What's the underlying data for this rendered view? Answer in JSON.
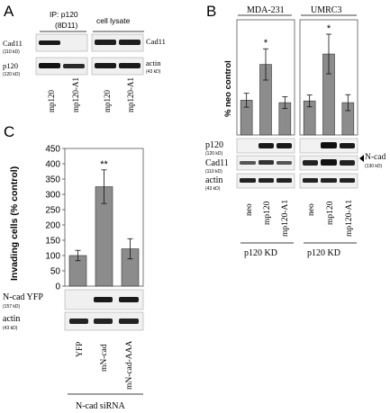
{
  "panel_a": {
    "label": "A",
    "ip_title": "IP: p120",
    "ip_antibody": "(8D11)",
    "lysate_title": "cell lysate",
    "row1_label": "Cad11",
    "row1_kd": "(110 kD)",
    "row2_label": "p120",
    "row2_kd": "(120 kD)",
    "right1_label": "Cad11",
    "right2_label": "actin",
    "right2_kd": "(43 kD)",
    "lanes": [
      "mp120",
      "mp120-A1",
      "mp120",
      "mp120-A1"
    ]
  },
  "panel_b": {
    "label": "B",
    "ylabel": "% neo control",
    "cell_lines": [
      "MDA-231",
      "UMRC3"
    ],
    "lanes": [
      "neo",
      "mp120",
      "mp120-A1",
      "neo",
      "mp120",
      "mp120-A1"
    ],
    "blot_p120": "p120",
    "blot_p120_kd": "(120 kD)",
    "blot_cad11": "Cad11",
    "blot_cad11_kd": "(110 kD)",
    "blot_actin": "actin",
    "blot_actin_kd": "(43 kD)",
    "ncad_label": "N-cad",
    "ncad_kd": "(130 kD)",
    "kd_labels": [
      "p120 KD",
      "p120 KD"
    ]
  },
  "panel_c": {
    "label": "C",
    "blot_ncad": "N-cad YFP",
    "blot_ncad_kd": "(157 kD)",
    "blot_actin": "actin",
    "blot_actin_kd": "(43 kD)",
    "sirna": "N-cad siRNA"
  },
  "chart_data": [
    {
      "type": "bar",
      "title": "MDA-231",
      "ylabel": "% neo control",
      "categories": [
        "neo",
        "mp120",
        "mp120-A1"
      ],
      "values": [
        100,
        203,
        93
      ],
      "errors": [
        20,
        45,
        17
      ],
      "annotations": [
        "",
        "*",
        ""
      ],
      "ylim": [
        0,
        300
      ]
    },
    {
      "type": "bar",
      "title": "UMRC3",
      "ylabel": "% neo control",
      "categories": [
        "neo",
        "mp120",
        "mp120-A1"
      ],
      "values": [
        98,
        233,
        93
      ],
      "errors": [
        17,
        57,
        23
      ],
      "annotations": [
        "",
        "*",
        ""
      ],
      "ylim": [
        0,
        300
      ]
    },
    {
      "type": "bar",
      "title": "",
      "ylabel": "Invading cells (% control)",
      "categories": [
        "YFP",
        "mN-cad",
        "mN-cad-AAA"
      ],
      "values": [
        100,
        325,
        122
      ],
      "errors": [
        17,
        55,
        33
      ],
      "annotations": [
        "",
        "**",
        ""
      ],
      "yticks": [
        0,
        50,
        100,
        150,
        200,
        250,
        300,
        350,
        400,
        450
      ],
      "ylim": [
        0,
        450
      ]
    }
  ]
}
